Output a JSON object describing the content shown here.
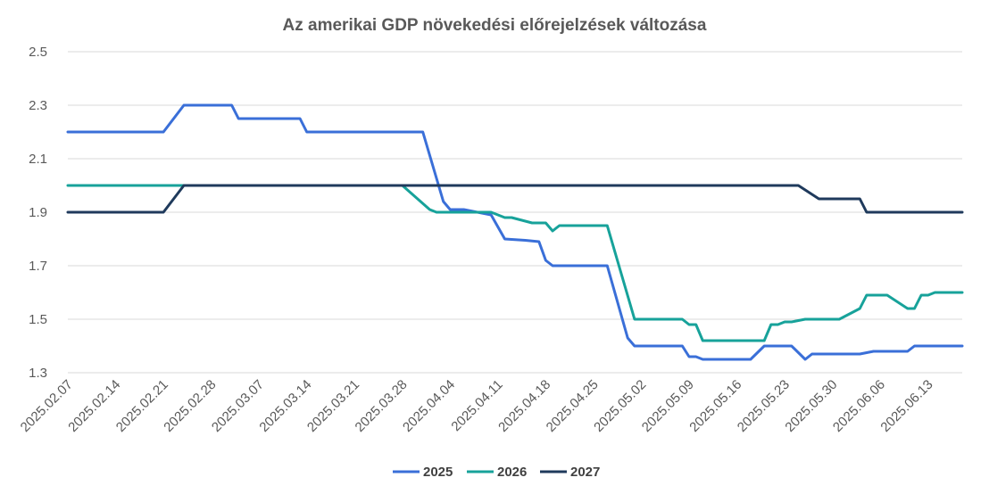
{
  "chart_data": {
    "type": "line",
    "title": "Az amerikai GDP növekedési előrejelzések változása",
    "xlabel": "",
    "ylabel": "",
    "ylim": [
      1.3,
      2.5
    ],
    "yticks": [
      "2.5",
      "2.3",
      "2.1",
      "1.9",
      "1.7",
      "1.5",
      "1.3"
    ],
    "x_start": "2025.02.07",
    "x_end": "2025.06.18",
    "x_ticks": [
      "2025.02.07",
      "2025.02.14",
      "2025.02.21",
      "2025.02.28",
      "2025.03.07",
      "2025.03.14",
      "2025.03.21",
      "2025.03.28",
      "2025.04.04",
      "2025.04.11",
      "2025.04.18",
      "2025.04.25",
      "2025.05.02",
      "2025.05.09",
      "2025.05.16",
      "2025.05.23",
      "2025.05.30",
      "2025.06.06",
      "2025.06.13"
    ],
    "grid": true,
    "legend_position": "bottom",
    "series": [
      {
        "name": "2025",
        "color": "#3A6FD8",
        "points": [
          [
            "2025.02.07",
            2.2
          ],
          [
            "2025.02.21",
            2.2
          ],
          [
            "2025.02.24",
            2.3
          ],
          [
            "2025.03.03",
            2.3
          ],
          [
            "2025.03.04",
            2.25
          ],
          [
            "2025.03.13",
            2.25
          ],
          [
            "2025.03.14",
            2.2
          ],
          [
            "2025.03.31",
            2.2
          ],
          [
            "2025.04.03",
            1.94
          ],
          [
            "2025.04.04",
            1.91
          ],
          [
            "2025.04.06",
            1.91
          ],
          [
            "2025.04.10",
            1.89
          ],
          [
            "2025.04.12",
            1.8
          ],
          [
            "2025.04.15",
            1.795
          ],
          [
            "2025.04.17",
            1.79
          ],
          [
            "2025.04.18",
            1.72
          ],
          [
            "2025.04.19",
            1.7
          ],
          [
            "2025.04.27",
            1.7
          ],
          [
            "2025.04.30",
            1.43
          ],
          [
            "2025.05.01",
            1.4
          ],
          [
            "2025.05.08",
            1.4
          ],
          [
            "2025.05.09",
            1.36
          ],
          [
            "2025.05.10",
            1.36
          ],
          [
            "2025.05.11",
            1.35
          ],
          [
            "2025.05.18",
            1.35
          ],
          [
            "2025.05.20",
            1.4
          ],
          [
            "2025.05.24",
            1.4
          ],
          [
            "2025.05.26",
            1.35
          ],
          [
            "2025.05.27",
            1.37
          ],
          [
            "2025.06.03",
            1.37
          ],
          [
            "2025.06.05",
            1.38
          ],
          [
            "2025.06.10",
            1.38
          ],
          [
            "2025.06.11",
            1.4
          ],
          [
            "2025.06.18",
            1.4
          ]
        ]
      },
      {
        "name": "2026",
        "color": "#17A29A",
        "points": [
          [
            "2025.02.07",
            2.0
          ],
          [
            "2025.03.28",
            2.0
          ],
          [
            "2025.04.01",
            1.91
          ],
          [
            "2025.04.02",
            1.9
          ],
          [
            "2025.04.10",
            1.9
          ],
          [
            "2025.04.12",
            1.88
          ],
          [
            "2025.04.13",
            1.88
          ],
          [
            "2025.04.16",
            1.86
          ],
          [
            "2025.04.18",
            1.86
          ],
          [
            "2025.04.19",
            1.83
          ],
          [
            "2025.04.20",
            1.85
          ],
          [
            "2025.04.27",
            1.85
          ],
          [
            "2025.05.01",
            1.5
          ],
          [
            "2025.05.08",
            1.5
          ],
          [
            "2025.05.09",
            1.48
          ],
          [
            "2025.05.10",
            1.48
          ],
          [
            "2025.05.11",
            1.42
          ],
          [
            "2025.05.20",
            1.42
          ],
          [
            "2025.05.21",
            1.48
          ],
          [
            "2025.05.22",
            1.48
          ],
          [
            "2025.05.23",
            1.49
          ],
          [
            "2025.05.24",
            1.49
          ],
          [
            "2025.05.26",
            1.5
          ],
          [
            "2025.05.31",
            1.5
          ],
          [
            "2025.06.03",
            1.54
          ],
          [
            "2025.06.04",
            1.59
          ],
          [
            "2025.06.07",
            1.59
          ],
          [
            "2025.06.10",
            1.54
          ],
          [
            "2025.06.11",
            1.54
          ],
          [
            "2025.06.12",
            1.59
          ],
          [
            "2025.06.13",
            1.59
          ],
          [
            "2025.06.14",
            1.6
          ],
          [
            "2025.06.18",
            1.6
          ]
        ]
      },
      {
        "name": "2027",
        "color": "#1F3A5C",
        "points": [
          [
            "2025.02.07",
            1.9
          ],
          [
            "2025.02.21",
            1.9
          ],
          [
            "2025.02.24",
            2.0
          ],
          [
            "2025.05.25",
            2.0
          ],
          [
            "2025.05.28",
            1.95
          ],
          [
            "2025.06.03",
            1.95
          ],
          [
            "2025.06.04",
            1.9
          ],
          [
            "2025.06.18",
            1.9
          ]
        ]
      }
    ]
  }
}
